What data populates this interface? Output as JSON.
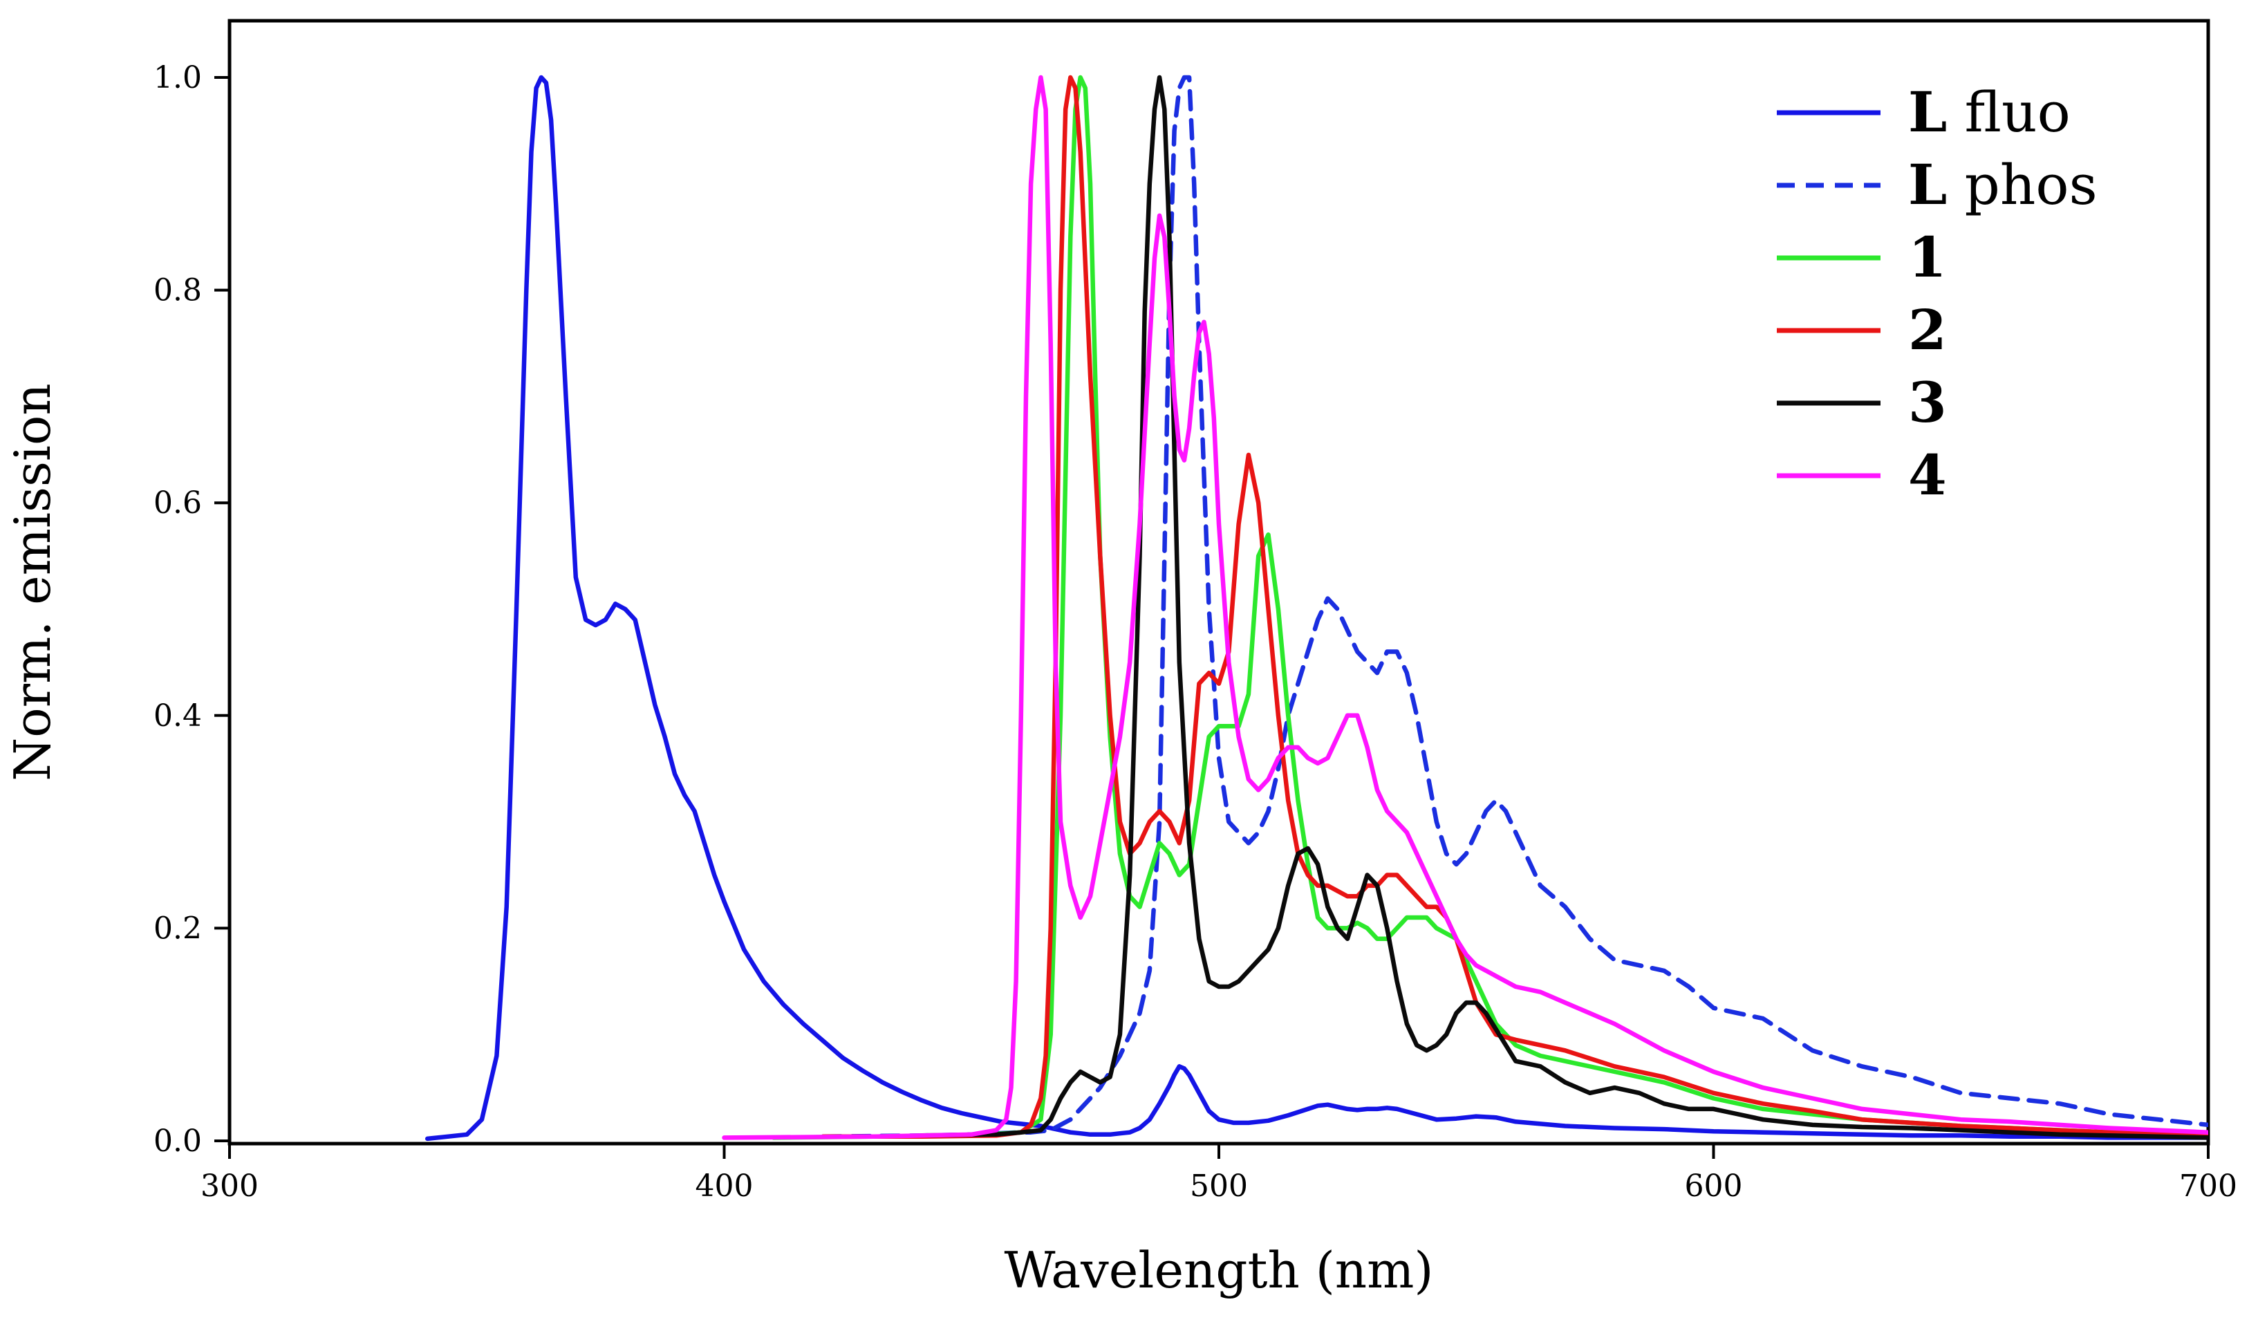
{
  "chart_data": {
    "type": "line",
    "title": "",
    "xlabel": "Wavelength (nm)",
    "ylabel": "Norm.  emission",
    "xlim": [
      300,
      700
    ],
    "ylim": [
      0,
      1.0
    ],
    "x_ticks": [
      300,
      400,
      500,
      600,
      700
    ],
    "x_tick_labels": [
      "300",
      "400",
      "500",
      "600",
      "700"
    ],
    "y_ticks": [
      0.0,
      0.2,
      0.4,
      0.6,
      0.8,
      1.0
    ],
    "y_tick_labels": [
      "0.0",
      "0.2",
      "0.4",
      "0.6",
      "0.8",
      "1.0"
    ],
    "grid": false,
    "legend_position": "top-right",
    "series": [
      {
        "name": "L fluo",
        "label_bold": "L",
        "label_rest": " fluo",
        "color": "#1414e6",
        "style": "solid",
        "x": [
          340,
          348,
          351,
          354,
          356,
          358,
          360,
          361,
          362,
          363,
          364,
          365,
          366,
          368,
          370,
          372,
          374,
          376,
          378,
          380,
          382,
          384,
          386,
          388,
          390,
          392,
          394,
          396,
          398,
          400,
          404,
          408,
          412,
          416,
          420,
          424,
          428,
          432,
          436,
          440,
          444,
          448,
          452,
          456,
          460,
          464,
          466,
          468,
          470,
          472,
          474,
          476,
          478,
          480,
          482,
          484,
          486,
          488,
          490,
          491,
          492,
          493,
          494,
          496,
          498,
          500,
          503,
          506,
          510,
          514,
          518,
          520,
          522,
          524,
          526,
          528,
          530,
          532,
          534,
          536,
          540,
          544,
          548,
          552,
          556,
          560,
          565,
          570,
          580,
          590,
          600,
          610,
          620,
          630,
          640,
          650,
          660,
          670,
          680,
          690,
          700
        ],
        "y": [
          0.002,
          0.006,
          0.02,
          0.08,
          0.22,
          0.5,
          0.8,
          0.93,
          0.99,
          1.0,
          0.995,
          0.96,
          0.88,
          0.7,
          0.53,
          0.49,
          0.485,
          0.49,
          0.505,
          0.5,
          0.49,
          0.45,
          0.41,
          0.38,
          0.345,
          0.325,
          0.31,
          0.28,
          0.25,
          0.225,
          0.18,
          0.15,
          0.128,
          0.11,
          0.094,
          0.078,
          0.066,
          0.055,
          0.046,
          0.038,
          0.031,
          0.026,
          0.022,
          0.018,
          0.016,
          0.014,
          0.012,
          0.01,
          0.008,
          0.007,
          0.006,
          0.006,
          0.006,
          0.007,
          0.008,
          0.012,
          0.02,
          0.035,
          0.052,
          0.062,
          0.07,
          0.068,
          0.062,
          0.045,
          0.028,
          0.02,
          0.017,
          0.017,
          0.019,
          0.024,
          0.03,
          0.033,
          0.034,
          0.032,
          0.03,
          0.029,
          0.03,
          0.03,
          0.031,
          0.03,
          0.025,
          0.02,
          0.021,
          0.023,
          0.022,
          0.018,
          0.016,
          0.014,
          0.012,
          0.011,
          0.009,
          0.008,
          0.007,
          0.006,
          0.005,
          0.005,
          0.004,
          0.004,
          0.003,
          0.003,
          0.003
        ]
      },
      {
        "name": "L phos",
        "label_bold": "L",
        "label_rest": " phos",
        "color": "#1a2ee0",
        "style": "dashed",
        "x": [
          420,
          440,
          450,
          455,
          460,
          462,
          464,
          466,
          468,
          470,
          472,
          474,
          476,
          478,
          480,
          482,
          484,
          486,
          488,
          489,
          490,
          491,
          492,
          493,
          494,
          495,
          496,
          498,
          500,
          502,
          504,
          506,
          508,
          510,
          512,
          514,
          516,
          518,
          520,
          522,
          524,
          526,
          528,
          530,
          532,
          534,
          536,
          538,
          540,
          542,
          544,
          546,
          548,
          550,
          552,
          554,
          556,
          558,
          560,
          562,
          565,
          570,
          575,
          580,
          585,
          590,
          595,
          600,
          605,
          610,
          615,
          620,
          630,
          640,
          650,
          660,
          670,
          680,
          690,
          700
        ],
        "y": [
          0.004,
          0.005,
          0.006,
          0.007,
          0.008,
          0.008,
          0.009,
          0.01,
          0.015,
          0.02,
          0.03,
          0.04,
          0.05,
          0.065,
          0.08,
          0.1,
          0.12,
          0.16,
          0.3,
          0.55,
          0.8,
          0.95,
          0.99,
          1.0,
          1.0,
          0.9,
          0.75,
          0.5,
          0.36,
          0.3,
          0.29,
          0.28,
          0.29,
          0.31,
          0.35,
          0.4,
          0.43,
          0.46,
          0.49,
          0.51,
          0.5,
          0.48,
          0.46,
          0.45,
          0.44,
          0.46,
          0.46,
          0.44,
          0.4,
          0.35,
          0.3,
          0.27,
          0.26,
          0.27,
          0.29,
          0.31,
          0.32,
          0.31,
          0.29,
          0.27,
          0.24,
          0.22,
          0.19,
          0.17,
          0.165,
          0.16,
          0.145,
          0.125,
          0.12,
          0.115,
          0.1,
          0.085,
          0.07,
          0.06,
          0.045,
          0.04,
          0.035,
          0.025,
          0.02,
          0.015
        ]
      },
      {
        "name": "1",
        "label_bold": "1",
        "label_rest": "",
        "color": "#2ce82c",
        "style": "solid",
        "x": [
          410,
          430,
          450,
          460,
          464,
          466,
          468,
          470,
          471,
          472,
          473,
          474,
          475,
          476,
          478,
          480,
          482,
          484,
          486,
          488,
          490,
          492,
          494,
          496,
          498,
          500,
          502,
          504,
          506,
          508,
          510,
          512,
          514,
          516,
          518,
          520,
          522,
          524,
          526,
          528,
          530,
          532,
          534,
          536,
          538,
          540,
          542,
          544,
          548,
          552,
          556,
          560,
          565,
          570,
          580,
          590,
          600,
          610,
          620,
          630,
          640,
          650,
          660,
          670,
          680,
          690,
          700
        ],
        "y": [
          0.003,
          0.004,
          0.005,
          0.008,
          0.02,
          0.1,
          0.4,
          0.85,
          0.97,
          1.0,
          0.99,
          0.9,
          0.72,
          0.55,
          0.38,
          0.27,
          0.23,
          0.22,
          0.25,
          0.28,
          0.27,
          0.25,
          0.26,
          0.32,
          0.38,
          0.39,
          0.39,
          0.39,
          0.42,
          0.55,
          0.57,
          0.5,
          0.4,
          0.32,
          0.26,
          0.21,
          0.2,
          0.2,
          0.2,
          0.205,
          0.2,
          0.19,
          0.19,
          0.2,
          0.21,
          0.21,
          0.21,
          0.2,
          0.19,
          0.15,
          0.11,
          0.09,
          0.08,
          0.075,
          0.065,
          0.055,
          0.04,
          0.03,
          0.025,
          0.02,
          0.017,
          0.014,
          0.012,
          0.01,
          0.008,
          0.006,
          0.005
        ]
      },
      {
        "name": "2",
        "label_bold": "2",
        "label_rest": "",
        "color": "#e81414",
        "style": "solid",
        "x": [
          420,
          440,
          455,
          460,
          462,
          464,
          465,
          466,
          467,
          468,
          469,
          470,
          471,
          472,
          474,
          476,
          478,
          480,
          482,
          484,
          486,
          488,
          490,
          492,
          494,
          496,
          498,
          500,
          502,
          504,
          506,
          508,
          510,
          512,
          514,
          516,
          518,
          520,
          522,
          524,
          526,
          528,
          530,
          532,
          534,
          536,
          538,
          540,
          542,
          544,
          546,
          548,
          550,
          552,
          556,
          560,
          565,
          570,
          580,
          590,
          600,
          610,
          620,
          630,
          640,
          650,
          660,
          670,
          680,
          690,
          700
        ],
        "y": [
          0.004,
          0.004,
          0.005,
          0.008,
          0.015,
          0.04,
          0.08,
          0.2,
          0.45,
          0.8,
          0.97,
          1.0,
          0.99,
          0.93,
          0.72,
          0.55,
          0.4,
          0.3,
          0.27,
          0.28,
          0.3,
          0.31,
          0.3,
          0.28,
          0.32,
          0.43,
          0.44,
          0.43,
          0.46,
          0.58,
          0.645,
          0.6,
          0.5,
          0.4,
          0.32,
          0.27,
          0.25,
          0.24,
          0.24,
          0.235,
          0.23,
          0.23,
          0.24,
          0.24,
          0.25,
          0.25,
          0.24,
          0.23,
          0.22,
          0.22,
          0.21,
          0.19,
          0.16,
          0.13,
          0.1,
          0.095,
          0.09,
          0.085,
          0.07,
          0.06,
          0.045,
          0.035,
          0.028,
          0.02,
          0.017,
          0.014,
          0.012,
          0.01,
          0.008,
          0.006,
          0.005
        ]
      },
      {
        "name": "3",
        "label_bold": "3",
        "label_rest": "",
        "color": "#0a0a0a",
        "style": "solid",
        "x": [
          440,
          455,
          460,
          464,
          466,
          468,
          470,
          472,
          474,
          476,
          478,
          480,
          482,
          484,
          485,
          486,
          487,
          488,
          489,
          490,
          491,
          492,
          494,
          496,
          498,
          500,
          502,
          504,
          506,
          508,
          510,
          512,
          514,
          516,
          518,
          520,
          522,
          524,
          526,
          528,
          530,
          532,
          534,
          536,
          538,
          540,
          542,
          544,
          546,
          548,
          550,
          552,
          554,
          556,
          558,
          560,
          565,
          570,
          575,
          580,
          585,
          590,
          595,
          600,
          605,
          610,
          620,
          630,
          640,
          650,
          660,
          670,
          680,
          690,
          700
        ],
        "y": [
          0.005,
          0.006,
          0.008,
          0.01,
          0.02,
          0.04,
          0.055,
          0.065,
          0.06,
          0.055,
          0.06,
          0.1,
          0.25,
          0.55,
          0.78,
          0.9,
          0.97,
          1.0,
          0.97,
          0.85,
          0.65,
          0.45,
          0.28,
          0.19,
          0.15,
          0.145,
          0.145,
          0.15,
          0.16,
          0.17,
          0.18,
          0.2,
          0.24,
          0.27,
          0.275,
          0.26,
          0.22,
          0.2,
          0.19,
          0.22,
          0.25,
          0.24,
          0.2,
          0.15,
          0.11,
          0.09,
          0.085,
          0.09,
          0.1,
          0.12,
          0.13,
          0.13,
          0.12,
          0.105,
          0.09,
          0.075,
          0.07,
          0.055,
          0.045,
          0.05,
          0.045,
          0.035,
          0.03,
          0.03,
          0.025,
          0.02,
          0.015,
          0.013,
          0.012,
          0.01,
          0.008,
          0.006,
          0.005,
          0.004,
          0.003
        ]
      },
      {
        "name": "4",
        "label_bold": "4",
        "label_rest": "",
        "color": "#ff14ff",
        "style": "solid",
        "x": [
          400,
          430,
          450,
          455,
          457,
          458,
          459,
          460,
          461,
          462,
          463,
          464,
          465,
          466,
          467,
          468,
          470,
          472,
          474,
          476,
          478,
          480,
          482,
          484,
          486,
          487,
          488,
          489,
          490,
          491,
          492,
          493,
          494,
          495,
          496,
          497,
          498,
          499,
          500,
          502,
          504,
          506,
          508,
          510,
          512,
          514,
          516,
          518,
          520,
          522,
          524,
          526,
          528,
          530,
          532,
          534,
          536,
          538,
          540,
          542,
          544,
          546,
          548,
          550,
          552,
          556,
          560,
          565,
          570,
          575,
          580,
          590,
          600,
          610,
          620,
          630,
          640,
          650,
          660,
          670,
          680,
          690,
          700
        ],
        "y": [
          0.003,
          0.004,
          0.006,
          0.01,
          0.02,
          0.05,
          0.15,
          0.4,
          0.7,
          0.9,
          0.97,
          1.0,
          0.97,
          0.75,
          0.45,
          0.3,
          0.24,
          0.21,
          0.23,
          0.28,
          0.33,
          0.38,
          0.45,
          0.58,
          0.75,
          0.83,
          0.87,
          0.85,
          0.78,
          0.7,
          0.65,
          0.64,
          0.67,
          0.72,
          0.76,
          0.77,
          0.74,
          0.68,
          0.58,
          0.45,
          0.38,
          0.34,
          0.33,
          0.34,
          0.36,
          0.37,
          0.37,
          0.36,
          0.355,
          0.36,
          0.38,
          0.4,
          0.4,
          0.37,
          0.33,
          0.31,
          0.3,
          0.29,
          0.27,
          0.25,
          0.23,
          0.21,
          0.19,
          0.175,
          0.165,
          0.155,
          0.145,
          0.14,
          0.13,
          0.12,
          0.11,
          0.085,
          0.065,
          0.05,
          0.04,
          0.03,
          0.025,
          0.02,
          0.018,
          0.015,
          0.012,
          0.01,
          0.008
        ]
      }
    ]
  }
}
